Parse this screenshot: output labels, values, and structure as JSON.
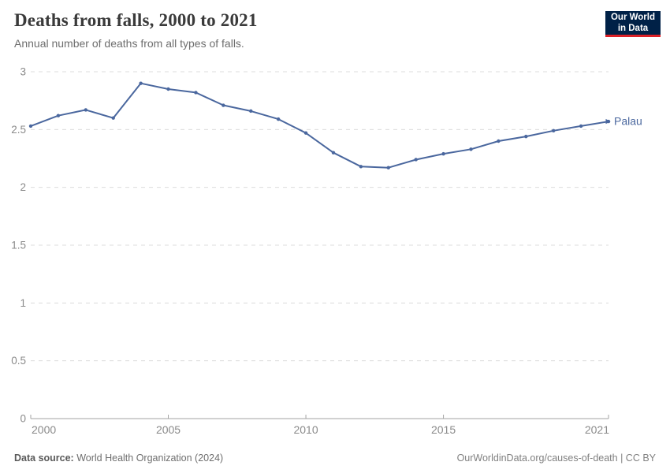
{
  "header": {
    "title": "Deaths from falls, 2000 to 2021",
    "subtitle": "Annual number of deaths from all types of falls.",
    "logo": {
      "line1": "Our World",
      "line2": "in Data",
      "bg_color": "#002147",
      "accent_color": "#dc2127"
    }
  },
  "chart_data": {
    "type": "line",
    "title": "Deaths from falls, 2000 to 2021",
    "xlabel": "",
    "ylabel": "",
    "x": [
      2000,
      2001,
      2002,
      2003,
      2004,
      2005,
      2006,
      2007,
      2008,
      2009,
      2010,
      2011,
      2012,
      2013,
      2014,
      2015,
      2016,
      2017,
      2018,
      2019,
      2020,
      2021
    ],
    "series": [
      {
        "name": "Palau",
        "color": "#4a679e",
        "values": [
          2.53,
          2.62,
          2.67,
          2.6,
          2.9,
          2.85,
          2.82,
          2.71,
          2.66,
          2.59,
          2.47,
          2.3,
          2.18,
          2.17,
          2.24,
          2.29,
          2.33,
          2.4,
          2.44,
          2.49,
          2.53,
          2.57
        ]
      }
    ],
    "xlim": [
      2000,
      2021
    ],
    "ylim": [
      0,
      3
    ],
    "x_ticks": [
      2000,
      2005,
      2010,
      2015,
      2021
    ],
    "y_ticks": [
      0,
      0.5,
      1,
      1.5,
      2,
      2.5,
      3
    ],
    "y_tick_labels": [
      "0",
      "0.5",
      "1",
      "1.5",
      "2",
      "2.5",
      "3"
    ],
    "grid": "horizontal-dashed",
    "legend_position": "end-of-line-label",
    "colors": {
      "gridline": "#dcdcdc",
      "axis": "#a3a3a3",
      "tick_label": "#8a8a8a"
    }
  },
  "footer": {
    "source_label": "Data source:",
    "source_value": " World Health Organization (2024)",
    "attribution": "OurWorldinData.org/causes-of-death | CC BY"
  }
}
